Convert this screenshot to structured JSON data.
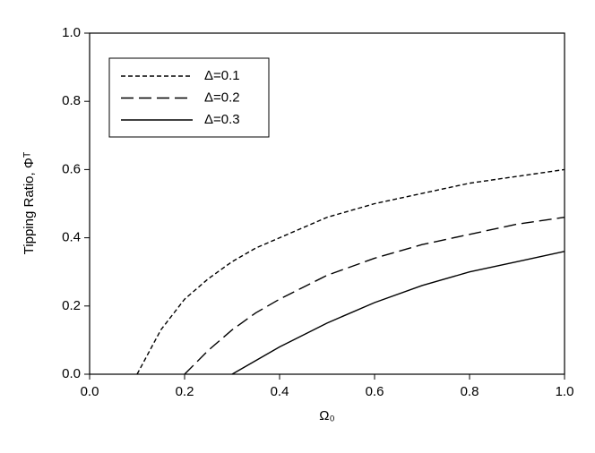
{
  "chart_data": {
    "type": "line",
    "xlabel": "Ω₀",
    "ylabel": "Tipping Ratio, Φᵀ",
    "x": [
      0.1,
      0.15,
      0.2,
      0.25,
      0.3,
      0.35,
      0.4,
      0.5,
      0.6,
      0.7,
      0.8,
      0.9,
      1.0
    ],
    "series": [
      {
        "name": "Δ=0.1",
        "color": "#000000",
        "dash": "short",
        "values": [
          0,
          0.13,
          0.22,
          0.28,
          0.33,
          0.37,
          0.4,
          0.46,
          0.5,
          0.53,
          0.56,
          0.58,
          0.6
        ]
      },
      {
        "name": "Δ=0.2",
        "color": "#000000",
        "dash": "long",
        "values": [
          null,
          null,
          0,
          0.07,
          0.13,
          0.18,
          0.22,
          0.29,
          0.34,
          0.38,
          0.41,
          0.44,
          0.46
        ]
      },
      {
        "name": "Δ=0.3",
        "color": "#000000",
        "dash": "solid",
        "values": [
          null,
          null,
          null,
          null,
          0,
          0.04,
          0.08,
          0.15,
          0.21,
          0.26,
          0.3,
          0.33,
          0.36
        ]
      }
    ],
    "xlim": [
      0,
      1
    ],
    "ylim": [
      0,
      1
    ],
    "xticks": [
      {
        "value": 0,
        "label": "0.0"
      },
      0.2,
      0.4,
      0.6,
      0.8,
      {
        "value": 1,
        "label": "1.0"
      }
    ],
    "yticks": [
      {
        "value": 0,
        "label": "0.0"
      },
      0.2,
      0.4,
      0.6,
      0.8,
      {
        "value": 1,
        "label": "1.0"
      }
    ],
    "legend": "upper left",
    "grid": false
  }
}
